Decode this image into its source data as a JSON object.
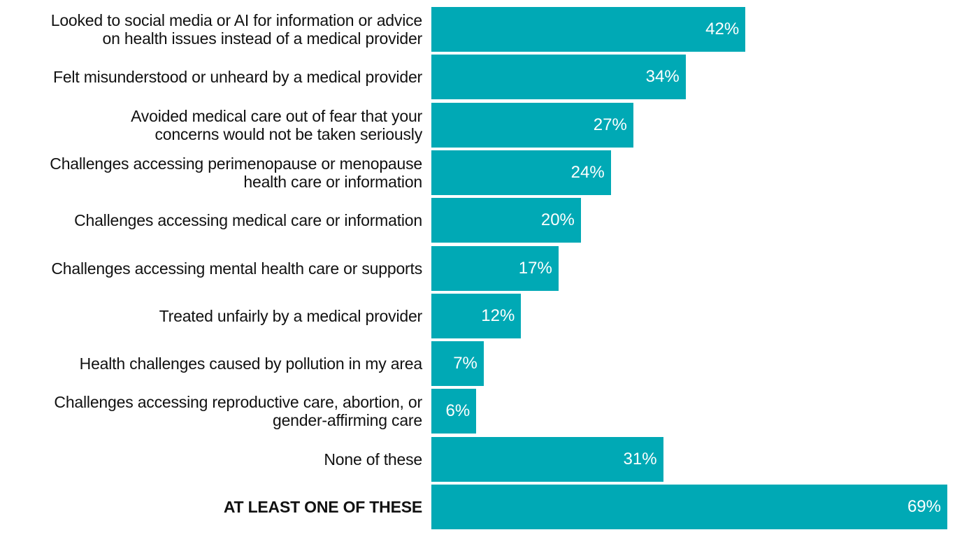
{
  "chart_data": {
    "type": "bar",
    "orientation": "horizontal",
    "title": "",
    "xlabel": "",
    "ylabel": "",
    "xlim": [
      0,
      69
    ],
    "grid": false,
    "legend": "none",
    "bar_color": "#00a9b5",
    "categories": [
      [
        "Looked to social media or AI for information or advice",
        "on health issues instead of a medical provider"
      ],
      [
        "Felt misunderstood or unheard by a medical provider"
      ],
      [
        "Avoided medical care out of fear that your",
        "concerns would not be taken seriously"
      ],
      [
        "Challenges accessing perimenopause or menopause",
        "health care or information"
      ],
      [
        "Challenges accessing medical care or information"
      ],
      [
        "Challenges accessing mental health care or supports"
      ],
      [
        "Treated unfairly by a medical provider"
      ],
      [
        "Health challenges caused by pollution in my area"
      ],
      [
        "Challenges accessing reproductive care, abortion, or",
        "gender-affirming care"
      ],
      [
        "None of these"
      ],
      [
        "AT LEAST ONE OF THESE"
      ]
    ],
    "values": [
      42,
      34,
      27,
      24,
      20,
      17,
      12,
      7,
      6,
      31,
      69
    ],
    "value_labels": [
      "42%",
      "34%",
      "27%",
      "24%",
      "20%",
      "17%",
      "12%",
      "7%",
      "6%",
      "31%",
      "69%"
    ],
    "emphasized_category_index": 10
  }
}
